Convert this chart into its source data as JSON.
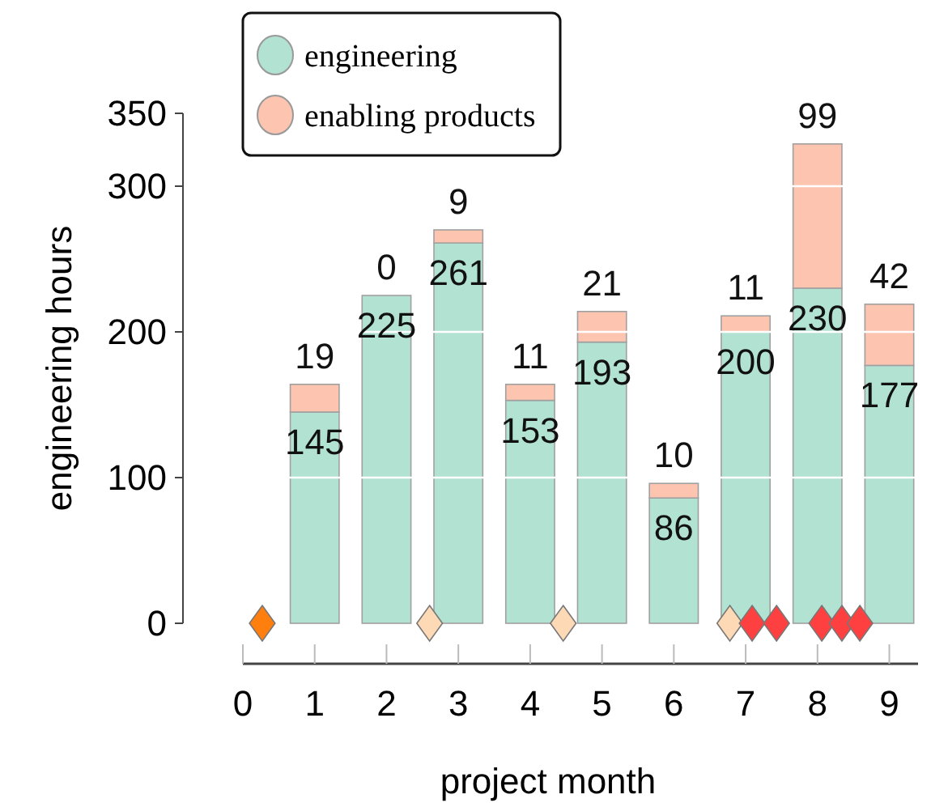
{
  "chart_data": {
    "type": "bar",
    "stacked": true,
    "xlabel": "project month",
    "ylabel": "engineering hours",
    "x": [
      1,
      2,
      3,
      4,
      5,
      6,
      7,
      8,
      9
    ],
    "series": [
      {
        "name": "engineering",
        "color": "#b2e2d2",
        "values": [
          145,
          225,
          261,
          153,
          193,
          86,
          200,
          230,
          177
        ],
        "value_labels": [
          "145",
          "225",
          "261",
          "153",
          "193",
          "86",
          "200",
          "230",
          "177"
        ]
      },
      {
        "name": "enabling products",
        "color": "#fdc4b0",
        "values": [
          19,
          0,
          9,
          11,
          21,
          10,
          11,
          99,
          42
        ],
        "value_labels": [
          "19",
          "0",
          "9",
          "11",
          "21",
          "10",
          "11",
          "99",
          "42"
        ]
      },
      {
        "type": "scatter",
        "color": "#ff7f0e",
        "marker": "diamond",
        "x": [
          0.27
        ],
        "values": [
          0
        ]
      },
      {
        "type": "scatter",
        "color": "#fdd9b5",
        "marker": "diamond",
        "x": [
          2.6,
          4.46,
          6.78
        ],
        "values": [
          0,
          0,
          0
        ]
      },
      {
        "type": "scatter",
        "color": "#ff4040",
        "marker": "diamond",
        "x": [
          7.09,
          7.43,
          8.06,
          8.34,
          8.59
        ],
        "values": [
          0,
          0,
          0,
          0,
          0
        ]
      }
    ],
    "xlim": [
      0,
      9.4
    ],
    "xticks": [
      0,
      1,
      2,
      3,
      4,
      5,
      6,
      7,
      8,
      9
    ],
    "ylim": [
      0,
      350
    ],
    "yticks": [
      0,
      100,
      200,
      300,
      350
    ],
    "grid": "y",
    "legend": "top left"
  }
}
